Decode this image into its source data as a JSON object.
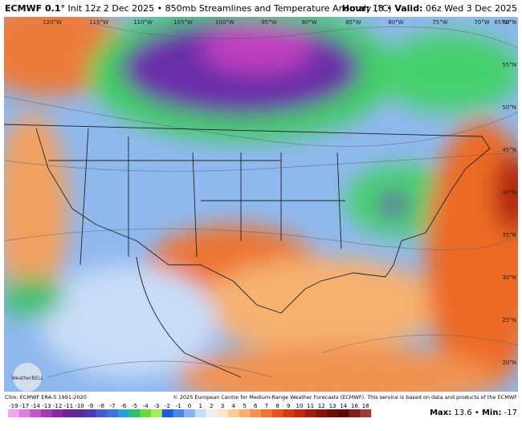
{
  "header": {
    "model": "ECMWF 0.1°",
    "init": "Init 12z 2 Dec 2025",
    "separator": "•",
    "product": "850mb Streamlines and Temperature Anomaly (°C)",
    "hour_label": "Hour:",
    "hour": "18",
    "valid_label": "Valid:",
    "valid": "06z Wed 3 Dec 2025"
  },
  "map": {
    "lon_labels": [
      "120°W",
      "115°W",
      "110°W",
      "105°W",
      "100°W",
      "95°W",
      "90°W",
      "85°W",
      "80°W",
      "75°W",
      "70°W",
      "65°W"
    ],
    "lat_labels": [
      "60°N",
      "55°N",
      "50°N",
      "45°N",
      "40°N",
      "35°N",
      "30°N",
      "25°N",
      "20°N"
    ],
    "logo": "WeatherBELL"
  },
  "footer": {
    "clim": "Clim: ECMWF ERA-5 1991-2020",
    "credit": "© 2025 European Centre for Medium-Range Weather Forecasts (ECMWF). This service is based on data and products of the ECMWF"
  },
  "colorbar": {
    "labels": [
      -19,
      -17,
      -14,
      -13,
      -12,
      -11,
      -10,
      -9,
      -8,
      -7,
      -6,
      -5,
      -4,
      -3,
      -2,
      -1,
      0,
      1,
      2,
      3,
      4,
      5,
      6,
      7,
      8,
      9,
      10,
      11,
      12,
      13,
      14,
      16,
      18
    ],
    "colors": [
      "#f2a6f2",
      "#e07ee0",
      "#c458c8",
      "#a23cb0",
      "#8a2aa0",
      "#6c2494",
      "#5a2c9a",
      "#4a3cb0",
      "#4a58c8",
      "#3c78dc",
      "#2aa0d8",
      "#34c06a",
      "#6ad83e",
      "#a8ea5a",
      "#1e5adc",
      "#4a86e8",
      "#88b4f0",
      "#c8dcf8",
      "#f0f0f4",
      "#fae6c8",
      "#f8cc90",
      "#f6b070",
      "#f29250",
      "#ec7434",
      "#e45620",
      "#d43c14",
      "#bc2a10",
      "#a01e10",
      "#84140c",
      "#6c0c08",
      "#5a0808",
      "#7a2020",
      "#9a3a3a"
    ]
  },
  "stats": {
    "max_label": "Max:",
    "max": 13.6,
    "separator": "•",
    "min_label": "Min:",
    "min": -17.0
  }
}
